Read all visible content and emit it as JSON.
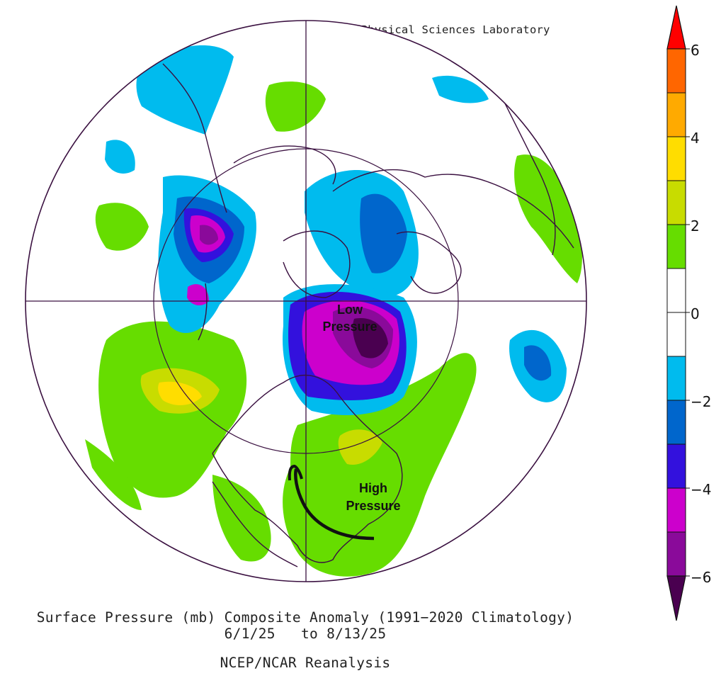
{
  "credit": "NOAA Physical Sciences Laboratory",
  "caption": {
    "title": "Surface Pressure (mb) Composite Anomaly (1991−2020 Climatology)",
    "dates": "6/1/25   to 8/13/25",
    "source": "NCEP/NCAR Reanalysis"
  },
  "annotations": {
    "low_line1": "Low",
    "low_line2": "Pressure",
    "high_line1": "High",
    "high_line2": "Pressure"
  },
  "colorbar": {
    "labels": [
      "6",
      "4",
      "2",
      "0",
      "−2",
      "−4",
      "−6"
    ],
    "colors": {
      "gt6": "#ff0000",
      "5to6": "#ff6600",
      "4to5": "#ffaa00",
      "3to4": "#ffdd00",
      "2to3": "#c8dc00",
      "1to2": "#66dd00",
      "neutral": "#ffffff",
      "m1to-2": "#00bbee",
      "m2to-3": "#0066cc",
      "m3to-4": "#3311dd",
      "m4to-5": "#cc00cc",
      "m5to-6": "#8a0a9a",
      "lt-6": "#4a0050"
    }
  },
  "map": {
    "projection": "north polar stereographic",
    "boundary_color": "#3a1040"
  }
}
